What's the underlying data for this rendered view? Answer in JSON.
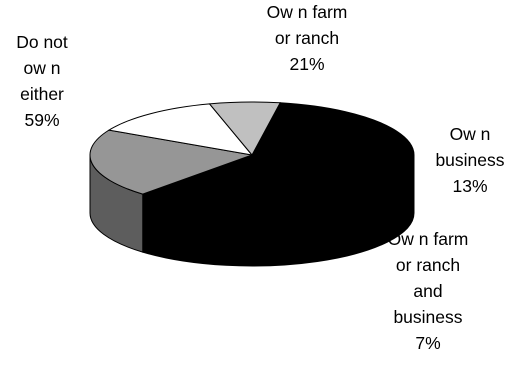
{
  "chart_data": {
    "type": "pie",
    "style": "3d",
    "title": "",
    "slices": [
      {
        "label_lines": [
          "Do not",
          "ow n",
          "either"
        ],
        "value_text": "59%",
        "value": 59,
        "color": "#000000"
      },
      {
        "label_lines": [
          "Ow n farm",
          "or ranch"
        ],
        "value_text": "21%",
        "value": 21,
        "color": "#969696"
      },
      {
        "label_lines": [
          "Ow n",
          "business"
        ],
        "value_text": "13%",
        "value": 13,
        "color": "#ffffff"
      },
      {
        "label_lines": [
          "Ow n farm",
          "or ranch",
          "and",
          "business"
        ],
        "value_text": "7%",
        "value": 7,
        "color": "#c0c0c0"
      }
    ],
    "legend": "none"
  }
}
